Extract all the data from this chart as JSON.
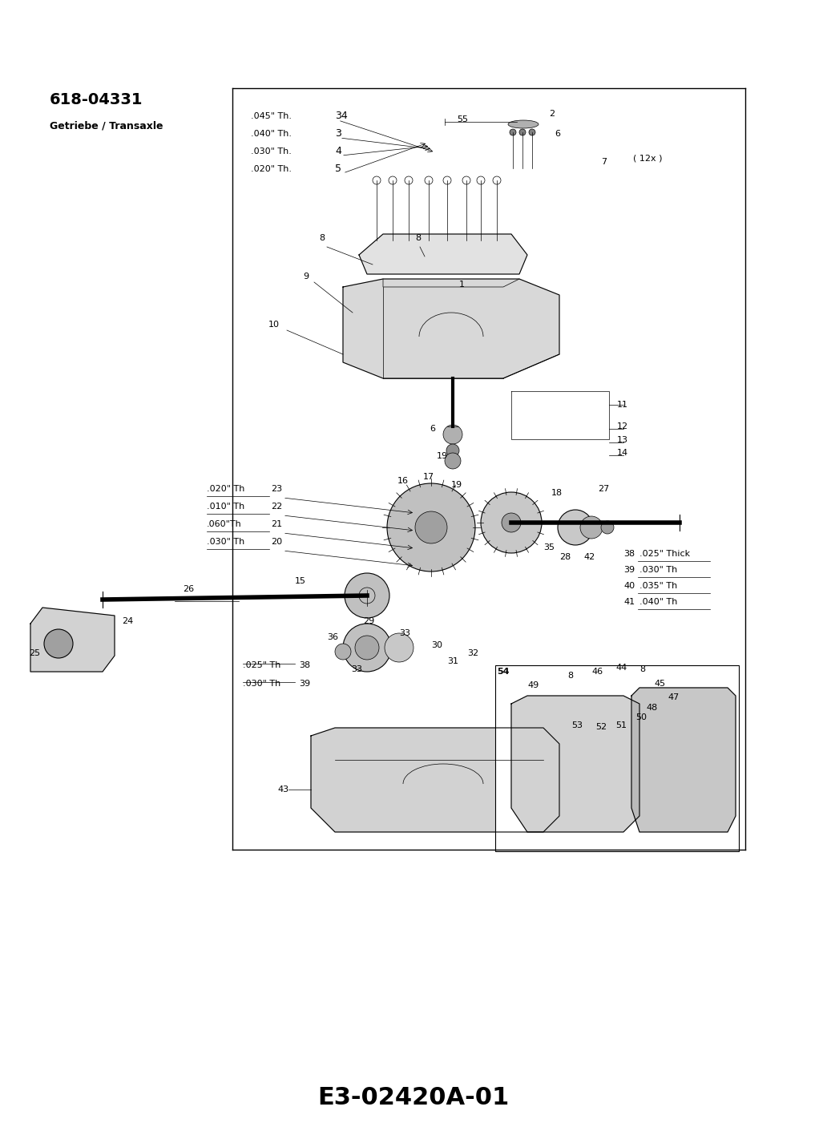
{
  "bg_color": "#ffffff",
  "part_number": "618-04331",
  "subtitle": "Getriebe / Transaxle",
  "footer_code": "E3-02420A-01",
  "fig_width": 10.32,
  "fig_height": 14.21,
  "thickness_labels_top": [
    [
      ".045\" Th.",
      "34"
    ],
    [
      ".040\" Th.",
      "3"
    ],
    [
      ".030\" Th.",
      "4"
    ],
    [
      ".020\" Th.",
      "5"
    ]
  ],
  "thickness_labels_left": [
    [
      ".020\" Th",
      "23"
    ],
    [
      ".010\" Th",
      "22"
    ],
    [
      ".060\"Th",
      "21"
    ],
    [
      ".030\" Th",
      "20"
    ]
  ],
  "thickness_labels_bottom_left": [
    [
      ".025\" Th",
      "38"
    ],
    [
      ".030\" Th",
      "39"
    ]
  ],
  "thickness_labels_right": [
    [
      "38",
      ".025\" Thick"
    ],
    [
      "39",
      ".030\" Th"
    ],
    [
      "40",
      ".035\" Th"
    ],
    [
      "41",
      ".040\" Th"
    ]
  ],
  "note_12x": "( 12x )",
  "footer_fontsize": 22,
  "header_fontsize": 14,
  "subtitle_fontsize": 9
}
